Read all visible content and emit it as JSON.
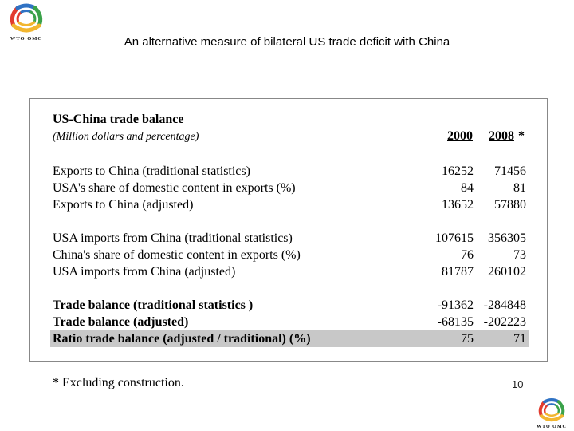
{
  "logo": {
    "text": "WTO OMC"
  },
  "title": "An alternative measure of bilateral US trade deficit with China",
  "table": {
    "heading": "US-China trade balance",
    "subheading": "(Million dollars and percentage)",
    "col1": "2000",
    "col2": "2008",
    "col2_mark": "*",
    "group1": [
      {
        "label": "Exports to China (traditional statistics)",
        "v1": "16252",
        "v2": "71456"
      },
      {
        "label": "USA's share of domestic content in exports (%)",
        "v1": "84",
        "v2": "81"
      },
      {
        "label": "Exports to China (adjusted)",
        "v1": "13652",
        "v2": "57880"
      }
    ],
    "group2": [
      {
        "label": "USA imports from China (traditional statistics)",
        "v1": "107615",
        "v2": "356305"
      },
      {
        "label": "China's share of domestic content in exports (%)",
        "v1": "76",
        "v2": "73"
      },
      {
        "label": "USA imports from China (adjusted)",
        "v1": "81787",
        "v2": "260102"
      }
    ],
    "group3": [
      {
        "label": "Trade balance (traditional statistics )",
        "v1": "-91362",
        "v2": "-284848"
      },
      {
        "label": "Trade balance (adjusted)",
        "v1": "-68135",
        "v2": "-202223"
      },
      {
        "label": "Ratio trade balance (adjusted / traditional) (%)",
        "v1": "75",
        "v2": "71"
      }
    ]
  },
  "footnote": "* Excluding construction.",
  "page_number": "10",
  "colors": {
    "highlight": "#c8c8c8",
    "border": "#888888"
  }
}
